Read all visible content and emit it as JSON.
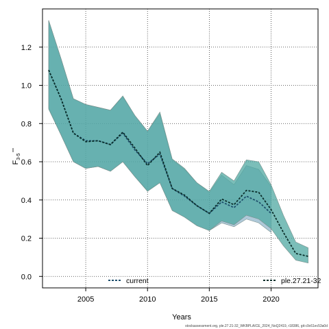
{
  "chart_data": {
    "type": "area",
    "title": "",
    "xlabel": "Years",
    "ylabel_main": "F",
    "ylabel_sub": "3-5",
    "xlim": [
      2001.5,
      2023.8
    ],
    "ylim": [
      -0.06,
      1.4
    ],
    "xticks": [
      2005,
      2010,
      2015,
      2020
    ],
    "yticks": [
      0.0,
      0.2,
      0.4,
      0.6,
      0.8,
      1.0,
      1.2
    ],
    "ytick_labels": [
      "0.0",
      "0.2",
      "0.4",
      "0.6",
      "0.8",
      "1.0",
      "1.2"
    ],
    "grid": true,
    "x": [
      2002,
      2003,
      2004,
      2005,
      2006,
      2007,
      2008,
      2009,
      2010,
      2011,
      2012,
      2013,
      2014,
      2015,
      2016,
      2017,
      2018,
      2019,
      2020,
      2021,
      2022,
      2023
    ],
    "series": [
      {
        "name": "current",
        "color": "#5d8fae",
        "band_color": "#6b9dba",
        "line_color": "#1d4d6b",
        "estimate": [
          1.08,
          0.93,
          0.75,
          0.71,
          0.71,
          0.69,
          0.75,
          0.66,
          0.59,
          0.64,
          0.46,
          0.42,
          0.37,
          0.33,
          0.39,
          0.36,
          0.42,
          0.39,
          0.33
        ],
        "lower": [
          0.88,
          0.74,
          0.6,
          0.565,
          0.575,
          0.55,
          0.6,
          0.52,
          0.45,
          0.49,
          0.345,
          0.31,
          0.265,
          0.24,
          0.28,
          0.26,
          0.3,
          0.28,
          0.23
        ],
        "upper": [
          1.34,
          1.14,
          0.93,
          0.9,
          0.885,
          0.87,
          0.94,
          0.84,
          0.76,
          0.85,
          0.61,
          0.56,
          0.49,
          0.44,
          0.53,
          0.48,
          0.58,
          0.56,
          0.47
        ]
      },
      {
        "name": "ple.27.21-32",
        "color": "#4aa89d",
        "band_color": "#4fa8a2",
        "line_color": "#0a2e2a",
        "estimate": [
          1.08,
          0.93,
          0.75,
          0.705,
          0.71,
          0.69,
          0.755,
          0.67,
          0.58,
          0.65,
          0.46,
          0.425,
          0.37,
          0.33,
          0.405,
          0.375,
          0.45,
          0.44,
          0.35,
          0.23,
          0.12,
          0.105
        ],
        "lower": [
          0.875,
          0.74,
          0.6,
          0.565,
          0.575,
          0.55,
          0.6,
          0.52,
          0.445,
          0.49,
          0.345,
          0.31,
          0.265,
          0.24,
          0.29,
          0.27,
          0.32,
          0.3,
          0.25,
          0.16,
          0.085,
          0.07
        ],
        "upper": [
          1.34,
          1.14,
          0.93,
          0.9,
          0.885,
          0.87,
          0.945,
          0.84,
          0.76,
          0.86,
          0.615,
          0.565,
          0.49,
          0.445,
          0.545,
          0.5,
          0.61,
          0.6,
          0.48,
          0.32,
          0.18,
          0.15
        ]
      }
    ],
    "legend": [
      {
        "label": "current",
        "position": "bottom-left"
      },
      {
        "label": "ple.27.21-32",
        "position": "bottom-right"
      }
    ],
    "caption": "stockassessment.org, ple.27.21-32_WKBPLAICE_2024_NoQ2419, r18386, git:c9c61ec53a0d"
  }
}
